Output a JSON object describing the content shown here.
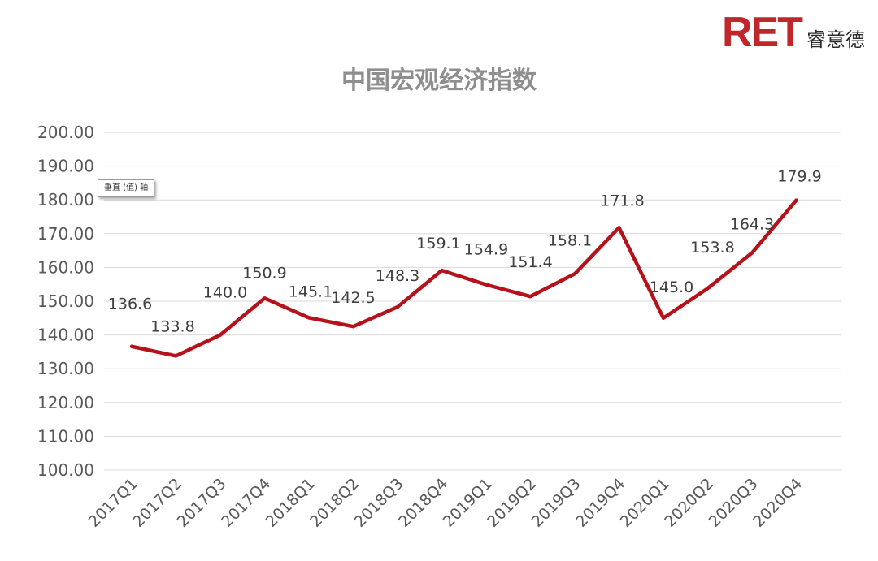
{
  "logo": {
    "mark": "RET",
    "text": "睿意德"
  },
  "tooltip": "垂直 (值) 轴",
  "colors": {
    "line": "#b5121b",
    "logo": "#c0272d",
    "title": "#8e8e8e",
    "grid": "#d9d9d9"
  },
  "chart_data": {
    "type": "line",
    "title": "中国宏观经济指数",
    "categories": [
      "2017Q1",
      "2017Q2",
      "2017Q3",
      "2017Q4",
      "2018Q1",
      "2018Q2",
      "2018Q3",
      "2018Q4",
      "2019Q1",
      "2019Q2",
      "2019Q3",
      "2019Q4",
      "2020Q1",
      "2020Q2",
      "2020Q3",
      "2020Q4"
    ],
    "series": [
      {
        "values": [
          136.6,
          133.8,
          140.0,
          150.9,
          145.1,
          142.5,
          148.3,
          159.1,
          154.9,
          151.4,
          158.1,
          171.8,
          145.0,
          153.8,
          164.3,
          179.9
        ]
      }
    ],
    "data_labels": [
      "136.6",
      "133.8",
      "140.0",
      "150.9",
      "145.1",
      "142.5",
      "148.3",
      "159.1",
      "154.9",
      "151.4",
      "158.1",
      "171.8",
      "145.0",
      "153.8",
      "164.3",
      "179.9"
    ],
    "ylim": [
      100,
      200
    ],
    "yticks": [
      "100.00",
      "110.00",
      "120.00",
      "130.00",
      "140.00",
      "150.00",
      "160.00",
      "170.00",
      "180.00",
      "190.00",
      "200.00"
    ],
    "grid": true,
    "legend": "none"
  }
}
